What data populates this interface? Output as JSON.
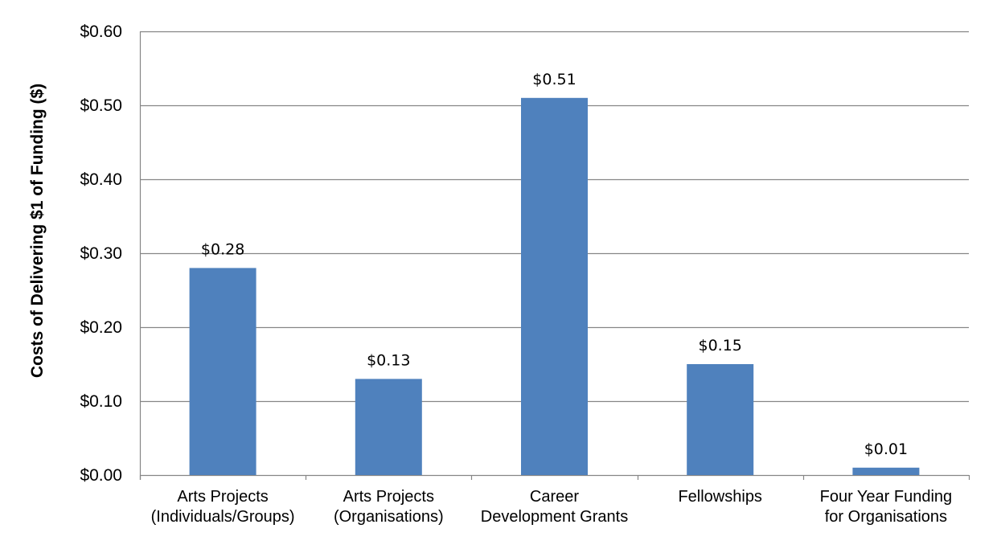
{
  "chart_data": {
    "type": "bar",
    "title": "",
    "xlabel": "",
    "ylabel": "Costs of Delivering $1 of Funding ($)",
    "categories": [
      [
        "Arts Projects",
        "(Individuals/Groups)"
      ],
      [
        "Arts Projects",
        "(Organisations)"
      ],
      [
        "Career",
        "Development Grants"
      ],
      [
        "Fellowships"
      ],
      [
        "Four Year Funding",
        "for Organisations"
      ]
    ],
    "values": [
      0.28,
      0.13,
      0.51,
      0.15,
      0.01
    ],
    "data_labels": [
      "$0.28",
      "$0.13",
      "$0.51",
      "$0.15",
      "$0.01"
    ],
    "ylim": [
      0,
      0.6
    ],
    "yticks": [
      0,
      0.1,
      0.2,
      0.3,
      0.4,
      0.5,
      0.6
    ],
    "ytick_labels": [
      "$0.00",
      "$0.10",
      "$0.20",
      "$0.30",
      "$0.40",
      "$0.50",
      "$0.60"
    ],
    "grid": true,
    "legend": "none",
    "colors": {
      "bar": "#4f81bd",
      "grid": "#868686",
      "axis": "#868686"
    }
  }
}
